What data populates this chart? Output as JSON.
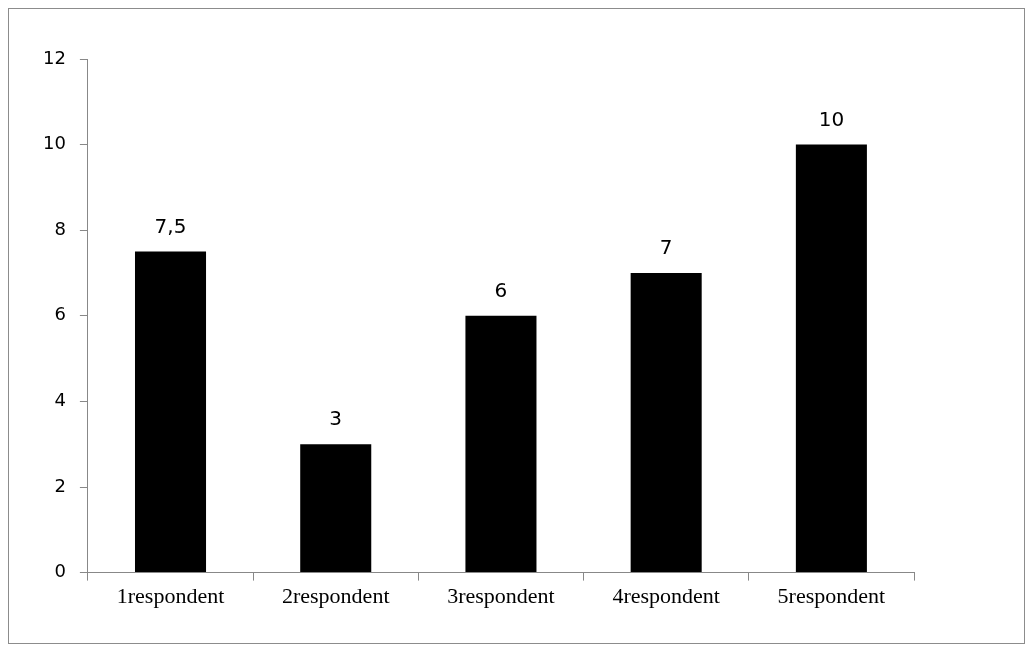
{
  "chart_data": {
    "type": "bar",
    "categories": [
      "1respondent",
      "2respondent",
      "3respondent",
      "4respondent",
      "5respondent"
    ],
    "values": [
      7.5,
      3,
      6,
      7,
      10
    ],
    "value_labels": [
      "7,5",
      "3",
      "6",
      "7",
      "10"
    ],
    "color": "#000000",
    "ylim": [
      0,
      12
    ],
    "yticks": [
      0,
      2,
      4,
      6,
      8,
      10,
      12
    ],
    "grid": false,
    "legend": false
  }
}
